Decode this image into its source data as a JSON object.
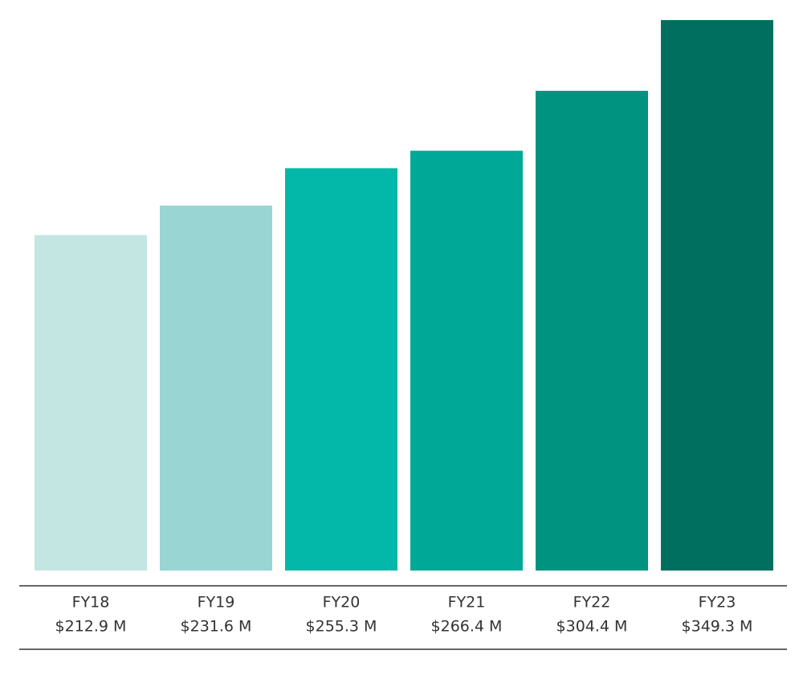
{
  "chart_data": {
    "type": "bar",
    "categories": [
      "FY18",
      "FY19",
      "FY20",
      "FY21",
      "FY22",
      "FY23"
    ],
    "values": [
      212.9,
      231.6,
      255.3,
      266.4,
      304.4,
      349.3
    ],
    "value_labels": [
      "$212.9 M",
      "$231.6 M",
      "$255.3 M",
      "$266.4 M",
      "$304.4 M",
      "$349.3 M"
    ],
    "colors": [
      "#c3e6e3",
      "#99d5d3",
      "#03b8a9",
      "#00a898",
      "#009380",
      "#006f5f"
    ]
  }
}
